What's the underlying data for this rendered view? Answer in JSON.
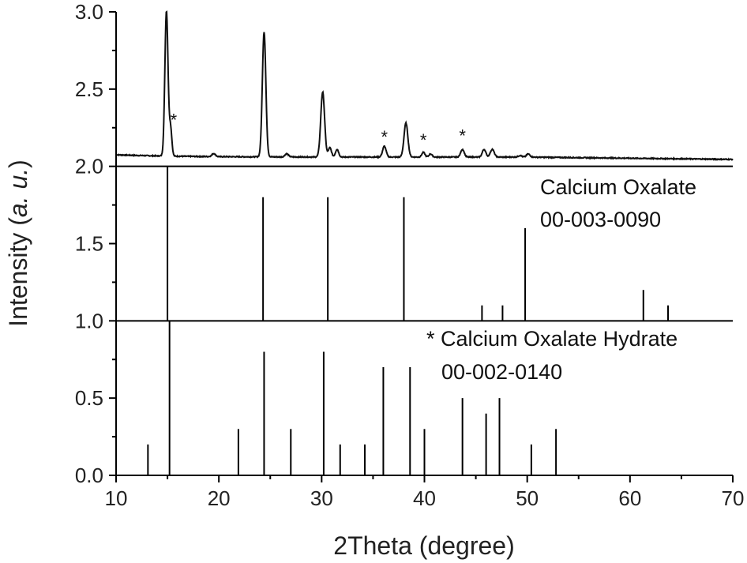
{
  "chart_data": {
    "type": "line",
    "xlabel": "2Theta (degree)",
    "ylabel_parts": {
      "a": "Intensity (",
      "b": "a. u.",
      "c": ")"
    },
    "xlim": [
      10,
      70
    ],
    "ylim": [
      0,
      3
    ],
    "x_ticks": [
      "10",
      "20",
      "30",
      "40",
      "50",
      "60",
      "70"
    ],
    "y_ticks": [
      "0.0",
      "0.5",
      "1.0",
      "1.5",
      "2.0",
      "2.5",
      "3.0"
    ],
    "grid": false,
    "series": [
      {
        "kind": "sample_pattern",
        "baseline": 2.06,
        "peaks": [
          {
            "x": 14.9,
            "y": 3.0,
            "w": 0.18
          },
          {
            "x": 15.3,
            "y": 2.24,
            "w": 0.15
          },
          {
            "x": 19.5,
            "y": 2.08,
            "w": 0.2
          },
          {
            "x": 24.4,
            "y": 2.87,
            "w": 0.2
          },
          {
            "x": 26.6,
            "y": 2.08,
            "w": 0.2
          },
          {
            "x": 30.1,
            "y": 2.48,
            "w": 0.22
          },
          {
            "x": 30.8,
            "y": 2.12,
            "w": 0.18
          },
          {
            "x": 31.5,
            "y": 2.11,
            "w": 0.18
          },
          {
            "x": 36.1,
            "y": 2.13,
            "w": 0.2
          },
          {
            "x": 38.2,
            "y": 2.28,
            "w": 0.22
          },
          {
            "x": 39.9,
            "y": 2.09,
            "w": 0.18
          },
          {
            "x": 40.6,
            "y": 2.08,
            "w": 0.18
          },
          {
            "x": 43.7,
            "y": 2.11,
            "w": 0.2
          },
          {
            "x": 45.8,
            "y": 2.11,
            "w": 0.2
          },
          {
            "x": 46.6,
            "y": 2.11,
            "w": 0.22
          },
          {
            "x": 49.3,
            "y": 2.07,
            "w": 0.2
          },
          {
            "x": 50.1,
            "y": 2.08,
            "w": 0.2
          }
        ],
        "star_marks": [
          {
            "x": 15.6,
            "y": 2.24,
            "label": "*"
          },
          {
            "x": 36.1,
            "y": 2.13,
            "label": "*"
          },
          {
            "x": 39.9,
            "y": 2.11,
            "label": "*"
          },
          {
            "x": 43.7,
            "y": 2.14,
            "label": "*"
          }
        ]
      },
      {
        "name": "Calcium Oxalate",
        "code": "00-003-0090",
        "kind": "reference_sticks",
        "base": 1.0,
        "sticks": [
          [
            15.0,
            2.0
          ],
          [
            24.3,
            1.8
          ],
          [
            30.6,
            1.8
          ],
          [
            38.0,
            1.8
          ],
          [
            45.6,
            1.1
          ],
          [
            47.6,
            1.1
          ],
          [
            49.8,
            1.6
          ],
          [
            61.3,
            1.2
          ],
          [
            63.7,
            1.1
          ]
        ]
      },
      {
        "name": "* Calcium Oxalate Hydrate",
        "code": "00-002-0140",
        "kind": "reference_sticks",
        "base": 0.0,
        "sticks": [
          [
            13.1,
            0.2
          ],
          [
            15.2,
            1.0
          ],
          [
            21.9,
            0.3
          ],
          [
            24.4,
            0.8
          ],
          [
            27.0,
            0.3
          ],
          [
            30.2,
            0.8
          ],
          [
            31.8,
            0.2
          ],
          [
            34.2,
            0.2
          ],
          [
            36.0,
            0.7
          ],
          [
            38.6,
            0.7
          ],
          [
            40.0,
            0.3
          ],
          [
            43.7,
            0.5
          ],
          [
            46.0,
            0.4
          ],
          [
            47.3,
            0.5
          ],
          [
            50.4,
            0.2
          ],
          [
            52.8,
            0.3
          ]
        ]
      }
    ],
    "panel_dividers": [
      1.0,
      2.0
    ]
  }
}
